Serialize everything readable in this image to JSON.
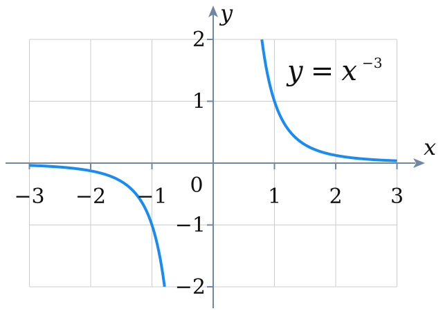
{
  "chart_data": {
    "type": "line",
    "title": "",
    "formula": {
      "lhs": "y",
      "equals": "=",
      "base": "x",
      "exponent": "−3"
    },
    "xlabel": "x",
    "ylabel": "y",
    "xlim": [
      -3,
      3
    ],
    "ylim": [
      -2,
      2
    ],
    "grid": true,
    "x_ticks": [
      {
        "value": -3,
        "label": "−3"
      },
      {
        "value": -2,
        "label": "−2"
      },
      {
        "value": -1,
        "label": "−1"
      },
      {
        "value": 1,
        "label": "1"
      },
      {
        "value": 2,
        "label": "2"
      },
      {
        "value": 3,
        "label": "3"
      }
    ],
    "y_ticks": [
      {
        "value": 2,
        "label": "2"
      },
      {
        "value": 1,
        "label": "1"
      },
      {
        "value": -1,
        "label": "−1"
      },
      {
        "value": -2,
        "label": "−2"
      }
    ],
    "origin_label": "0",
    "series": [
      {
        "name": "",
        "color": "#1a8cf0",
        "segments": [
          [
            [
              -3,
              -0.037
            ],
            [
              -2.5,
              -0.064
            ],
            [
              -2,
              -0.125
            ],
            [
              -1.75,
              -0.187
            ],
            [
              -1.5,
              -0.296
            ],
            [
              -1.25,
              -0.512
            ],
            [
              -1,
              -1
            ],
            [
              -0.9,
              -1.372
            ],
            [
              -0.8,
              -1.953
            ],
            [
              -0.794,
              -2
            ]
          ],
          [
            [
              0.794,
              2
            ],
            [
              0.8,
              1.953
            ],
            [
              0.9,
              1.372
            ],
            [
              1,
              1
            ],
            [
              1.25,
              0.512
            ],
            [
              1.5,
              0.296
            ],
            [
              1.75,
              0.187
            ],
            [
              2,
              0.125
            ],
            [
              2.5,
              0.064
            ],
            [
              3,
              0.037
            ]
          ]
        ]
      }
    ],
    "colors": {
      "axis": "#6f87a3",
      "grid": "#cccccc",
      "curve": "#1a8cf0"
    }
  }
}
